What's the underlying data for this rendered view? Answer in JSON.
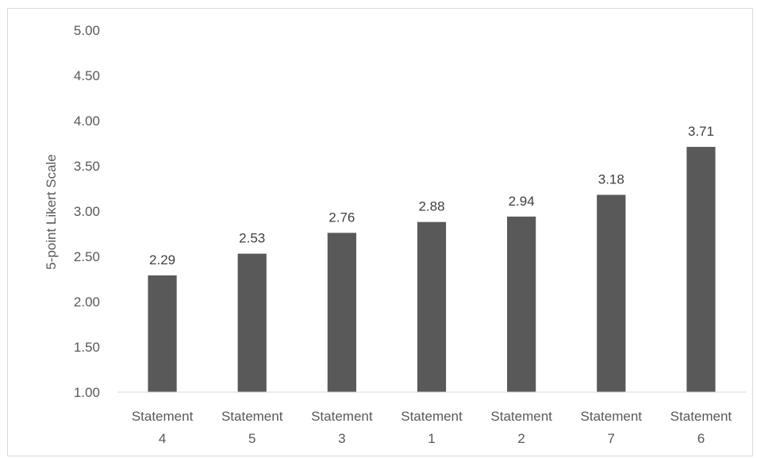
{
  "chart_data": {
    "type": "bar",
    "title": "",
    "xlabel": "",
    "ylabel": "5-point Likert Scale",
    "ylim": [
      1.0,
      5.0
    ],
    "yticks": [
      "1.00",
      "1.50",
      "2.00",
      "2.50",
      "3.00",
      "3.50",
      "4.00",
      "4.50",
      "5.00"
    ],
    "categories": [
      [
        "Statement",
        "4"
      ],
      [
        "Statement",
        "5"
      ],
      [
        "Statement",
        "3"
      ],
      [
        "Statement",
        "1"
      ],
      [
        "Statement",
        "2"
      ],
      [
        "Statement",
        "7"
      ],
      [
        "Statement",
        "6"
      ]
    ],
    "values": [
      2.29,
      2.53,
      2.76,
      2.88,
      2.94,
      3.18,
      3.71
    ],
    "data_labels": [
      "2.29",
      "2.53",
      "2.76",
      "2.88",
      "2.94",
      "3.18",
      "3.71"
    ],
    "bar_color": "#595959",
    "grid": false,
    "legend": "none"
  }
}
